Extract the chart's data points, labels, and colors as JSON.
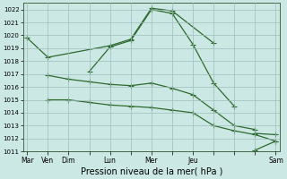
{
  "xlabel": "Pression niveau de la mer( hPa )",
  "background_color": "#cce8e4",
  "grid_color": "#9bbdb9",
  "line_color": "#2d6a2d",
  "ylim": [
    1011,
    1022.5
  ],
  "yticks": [
    1011,
    1012,
    1013,
    1014,
    1015,
    1016,
    1017,
    1018,
    1019,
    1020,
    1021,
    1022
  ],
  "xlim": [
    -0.2,
    12.2
  ],
  "xtick_label_map": {
    "0": "Mar",
    "1": "Ven",
    "2": "Dim",
    "4": "Lun",
    "6": "Mer",
    "8": "Jeu",
    "12": "Sam"
  },
  "series": [
    {
      "x": [
        0,
        1,
        4,
        5,
        6,
        7,
        9
      ],
      "y": [
        1019.8,
        1018.3,
        1019.2,
        1019.7,
        1022.1,
        1021.9,
        1019.4
      ]
    },
    {
      "x": [
        3,
        4,
        5,
        6,
        7,
        8,
        9,
        10
      ],
      "y": [
        1017.2,
        1019.1,
        1019.6,
        1022.0,
        1021.7,
        1019.3,
        1016.3,
        1014.5
      ]
    },
    {
      "x": [
        1,
        2,
        3,
        4,
        5,
        6,
        7,
        8,
        9,
        10,
        11
      ],
      "y": [
        1016.9,
        1016.6,
        1016.4,
        1016.2,
        1016.1,
        1016.3,
        1015.9,
        1015.4,
        1014.2,
        1013.0,
        1012.7
      ]
    },
    {
      "x": [
        1,
        2,
        3,
        4,
        5,
        6,
        7,
        8,
        9,
        10,
        11,
        12
      ],
      "y": [
        1015.0,
        1015.0,
        1014.8,
        1014.6,
        1014.5,
        1014.4,
        1014.2,
        1014.0,
        1013.0,
        1012.6,
        1012.3,
        1011.8
      ]
    },
    {
      "x": [
        11,
        12
      ],
      "y": [
        1012.4,
        1012.3
      ]
    },
    {
      "x": [
        11,
        12
      ],
      "y": [
        1011.1,
        1011.8
      ]
    }
  ],
  "marker": "+",
  "markersize": 4.0,
  "linewidth": 0.9,
  "ylabel_fontsize": 5.5,
  "xlabel_fontsize": 7.0
}
